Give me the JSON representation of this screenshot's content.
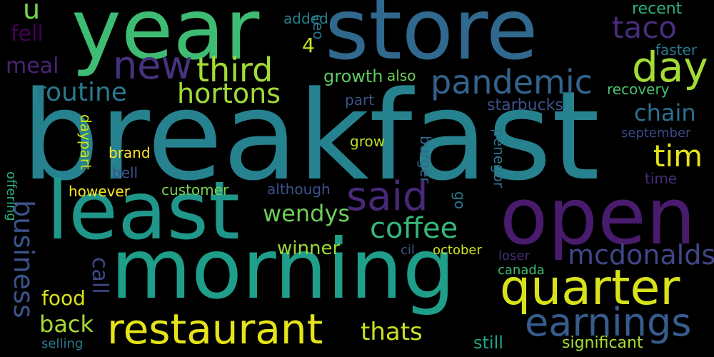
{
  "words": [
    {
      "text": "breakfast",
      "color": "#26828e"
    },
    {
      "text": "year",
      "color": "#3fbc73"
    },
    {
      "text": "store",
      "color": "#31688e"
    },
    {
      "text": "least",
      "color": "#1f988b"
    },
    {
      "text": "open",
      "color": "#481b6d"
    },
    {
      "text": "morning",
      "color": "#1f9e89"
    },
    {
      "text": "quarter",
      "color": "#d8e219"
    },
    {
      "text": "restaurant",
      "color": "#e5e419"
    },
    {
      "text": "earnings",
      "color": "#365c8d"
    },
    {
      "text": "day",
      "color": "#a5db36"
    },
    {
      "text": "new",
      "color": "#46327e"
    },
    {
      "text": "said",
      "color": "#482878"
    },
    {
      "text": "pandemic",
      "color": "#33638d"
    },
    {
      "text": "third",
      "color": "#a5db36"
    },
    {
      "text": "coffee",
      "color": "#35b779"
    },
    {
      "text": "routine",
      "color": "#2a788e"
    },
    {
      "text": "hortons",
      "color": "#a0da39"
    },
    {
      "text": "business",
      "color": "#3b528b"
    },
    {
      "text": "mcdonalds",
      "color": "#404688"
    },
    {
      "text": "tim",
      "color": "#e5e419"
    },
    {
      "text": "taco",
      "color": "#472d7b"
    },
    {
      "text": "u",
      "color": "#7ad151"
    },
    {
      "text": "wendys",
      "color": "#6ece58"
    },
    {
      "text": "thats",
      "color": "#cae11f"
    },
    {
      "text": "chain",
      "color": "#2c728e"
    },
    {
      "text": "back",
      "color": "#a8db34"
    },
    {
      "text": "food",
      "color": "#d8e219"
    },
    {
      "text": "call",
      "color": "#3e4989"
    },
    {
      "text": "winner",
      "color": "#9dd93b"
    },
    {
      "text": "meal",
      "color": "#482475"
    },
    {
      "text": "fell",
      "color": "#440154"
    },
    {
      "text": "4",
      "color": "#c8e020"
    },
    {
      "text": "growth",
      "color": "#5ec962"
    },
    {
      "text": "recent",
      "color": "#2eb37c"
    },
    {
      "text": "starbucks",
      "color": "#3b528b"
    },
    {
      "text": "faster",
      "color": "#2a788e"
    },
    {
      "text": "recovery",
      "color": "#4ac16d"
    },
    {
      "text": "added",
      "color": "#26828e"
    },
    {
      "text": "ceo",
      "color": "#2a788e"
    },
    {
      "text": "also",
      "color": "#6ece58"
    },
    {
      "text": "part",
      "color": "#3b528b"
    },
    {
      "text": "grow",
      "color": "#bddf26"
    },
    {
      "text": "brand",
      "color": "#fde725"
    },
    {
      "text": "daypart",
      "color": "#d0e11c"
    },
    {
      "text": "bell",
      "color": "#3b528b"
    },
    {
      "text": "burger",
      "color": "#31688e"
    },
    {
      "text": "penegor",
      "color": "#2c728e"
    },
    {
      "text": "september",
      "color": "#3e4989"
    },
    {
      "text": "time",
      "color": "#472d7b"
    },
    {
      "text": "however",
      "color": "#fde725"
    },
    {
      "text": "customer",
      "color": "#7ad151"
    },
    {
      "text": "although",
      "color": "#3b528b"
    },
    {
      "text": "go",
      "color": "#2a788e"
    },
    {
      "text": "offering",
      "color": "#2db27d"
    },
    {
      "text": "cil",
      "color": "#3b528b"
    },
    {
      "text": "october",
      "color": "#d0e11c"
    },
    {
      "text": "loser",
      "color": "#472d7b"
    },
    {
      "text": "canada",
      "color": "#3fbc73"
    },
    {
      "text": "selling",
      "color": "#2a788e"
    },
    {
      "text": "still",
      "color": "#20a486"
    },
    {
      "text": "significant",
      "color": "#a8db34"
    }
  ]
}
